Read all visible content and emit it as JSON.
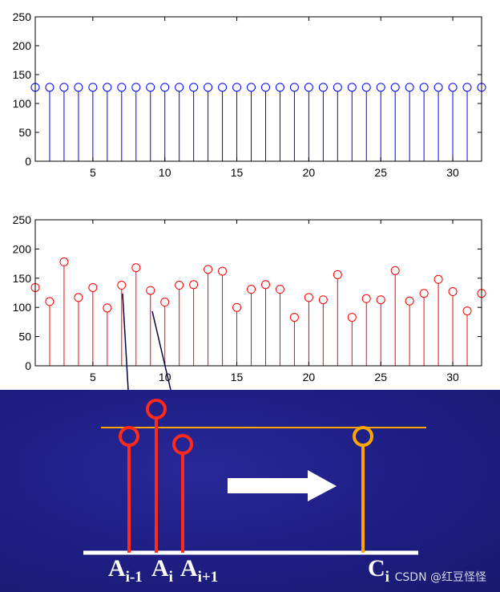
{
  "chart_data": [
    {
      "type": "stem",
      "xlim": [
        1,
        32
      ],
      "ylim": [
        0,
        250
      ],
      "x_ticks": [
        5,
        10,
        15,
        20,
        25,
        30
      ],
      "y_ticks": [
        0,
        50,
        100,
        150,
        200,
        250
      ],
      "series": [
        {
          "x": [
            1,
            2,
            3,
            4,
            5,
            6,
            7,
            8,
            9,
            10,
            11,
            12,
            13,
            14,
            15,
            16,
            17,
            18,
            19,
            20,
            21,
            22,
            23,
            24,
            25,
            26,
            27,
            28,
            29,
            30,
            31,
            32
          ],
          "values": [
            128,
            128,
            128,
            128,
            128,
            128,
            128,
            128,
            128,
            128,
            128,
            128,
            128,
            128,
            128,
            128,
            128,
            128,
            128,
            128,
            128,
            128,
            128,
            128,
            128,
            128,
            128,
            128,
            128,
            128,
            128,
            128
          ],
          "color": "#0000ff"
        }
      ],
      "grid": false
    },
    {
      "type": "stem",
      "xlim": [
        1,
        32
      ],
      "ylim": [
        0,
        250
      ],
      "x_ticks": [
        5,
        10,
        15,
        20,
        25,
        30
      ],
      "y_ticks": [
        0,
        50,
        100,
        150,
        200,
        250
      ],
      "series": [
        {
          "x": [
            1,
            2,
            3,
            4,
            5,
            6,
            7,
            8,
            9,
            10,
            11,
            12,
            13,
            14,
            15,
            16,
            17,
            18,
            19,
            20,
            21,
            22,
            23,
            24,
            25,
            26,
            27,
            28,
            29,
            30,
            31,
            32
          ],
          "values": [
            134,
            110,
            178,
            117,
            134,
            99,
            138,
            168,
            129,
            109,
            138,
            139,
            165,
            162,
            100,
            131,
            139,
            131,
            83,
            117,
            113,
            156,
            83,
            115,
            113,
            163,
            111,
            124,
            148,
            127,
            94,
            124
          ],
          "color": "#ff0000"
        }
      ],
      "grid": false
    }
  ],
  "diagram": {
    "labels": {
      "a_prev": {
        "main": "A",
        "sub": "i-1"
      },
      "a_cur": {
        "main": "A",
        "sub": "i"
      },
      "a_next": {
        "main": "A",
        "sub": "i+1"
      },
      "c_cur": {
        "main": "C",
        "sub": "i"
      }
    },
    "colors": {
      "red_stem": "#ff2a1a",
      "orange": "#ffa500",
      "white": "#ffffff",
      "background": "#1f1f86"
    }
  },
  "watermark": "CSDN @红豆怪怪"
}
